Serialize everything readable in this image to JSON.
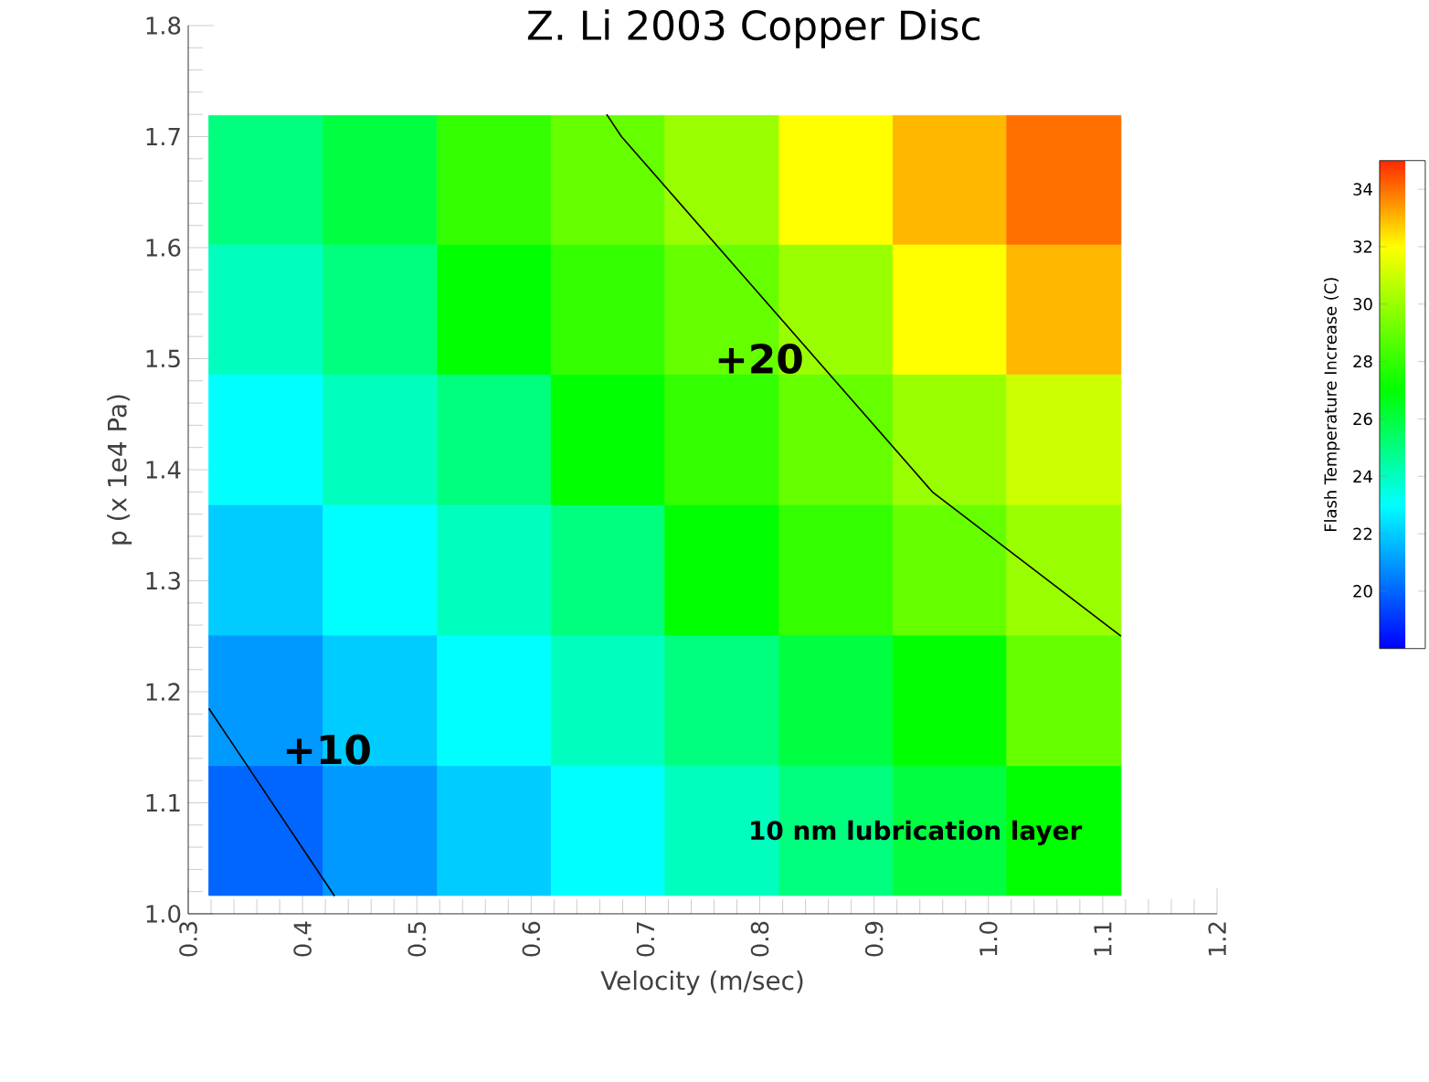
{
  "chart_data": {
    "type": "heatmap",
    "title": "Z. Li 2003 Copper Disc",
    "xlabel": "Velocity (m/sec)",
    "ylabel": "p (x 1e4 Pa)",
    "clabel": "Flash Temperature Increase (C)",
    "x": [
      0.368,
      0.468,
      0.568,
      0.667,
      0.767,
      0.867,
      0.966,
      1.066
    ],
    "y": [
      1.661,
      1.545,
      1.427,
      1.31,
      1.192,
      1.075
    ],
    "cells": [
      [
        25,
        26,
        28,
        29,
        30,
        32,
        33,
        34
      ],
      [
        24,
        25,
        27,
        28,
        29,
        30,
        32,
        33
      ],
      [
        23,
        24,
        25,
        27,
        28,
        29,
        30,
        31
      ],
      [
        22,
        23,
        24,
        25,
        27,
        28,
        29,
        30
      ],
      [
        21,
        22,
        23,
        24,
        25,
        26,
        27,
        29
      ],
      [
        20,
        21,
        22,
        23,
        24,
        25,
        26,
        27
      ]
    ],
    "clim": [
      18,
      35
    ],
    "cticks": [
      20,
      22,
      24,
      26,
      28,
      30,
      32,
      34
    ],
    "series": [
      {
        "type": "line",
        "color": "#000000",
        "x": [
          0.666,
          0.679,
          0.951,
          1.116
        ],
        "values": [
          1.72,
          1.7,
          1.38,
          1.25
        ]
      },
      {
        "type": "line",
        "color": "#000000",
        "x": [
          0.318,
          0.428
        ],
        "values": [
          1.185,
          1.016
        ]
      }
    ],
    "xlim": [
      0.3,
      1.2
    ],
    "ylim": [
      1.0,
      1.8
    ],
    "xticks": [
      0.3,
      0.4,
      0.5,
      0.6,
      0.7,
      0.8,
      0.9,
      {
        "value": 1.0,
        "label": "1.0"
      },
      1.1,
      1.2
    ],
    "yticks": [
      {
        "value": 1.0,
        "label": "1.0"
      },
      1.1,
      1.2,
      1.3,
      1.4,
      1.5,
      1.6,
      1.7,
      1.8
    ],
    "annotations": [
      "+20",
      "+10",
      "10 nm lubrication layer"
    ]
  }
}
